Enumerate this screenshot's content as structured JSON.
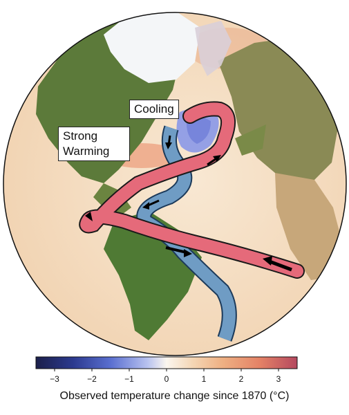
{
  "labels": {
    "cooling": "Cooling",
    "warming": "Strong Warming"
  },
  "colorbar": {
    "title": "Observed temperature change since 1870 (°C)",
    "min": -3.5,
    "max": 3.5,
    "ticks": [
      "−3",
      "−2",
      "−1",
      "0",
      "1",
      "2",
      "3"
    ],
    "tick_values": [
      -3,
      -2,
      -1,
      0,
      1,
      2,
      3
    ],
    "stops": [
      {
        "value": -3.5,
        "color": "#1b1f4a"
      },
      {
        "value": -2.5,
        "color": "#2c3a8f"
      },
      {
        "value": -1.5,
        "color": "#5a6fd0"
      },
      {
        "value": -0.5,
        "color": "#b9c3f0"
      },
      {
        "value": 0,
        "color": "#fbf6ef"
      },
      {
        "value": 0.7,
        "color": "#f4d6b5"
      },
      {
        "value": 1.5,
        "color": "#eeb083"
      },
      {
        "value": 2.5,
        "color": "#e48266"
      },
      {
        "value": 3.5,
        "color": "#b5485f"
      }
    ]
  },
  "colors": {
    "ocean": "#f6e2c8",
    "land": "#5d7a3a",
    "ice": "#f4f6f8",
    "warm_current": "#e56a7a",
    "cold_current": "#6f9cc4",
    "cooling_patch": "#8a98e8"
  }
}
